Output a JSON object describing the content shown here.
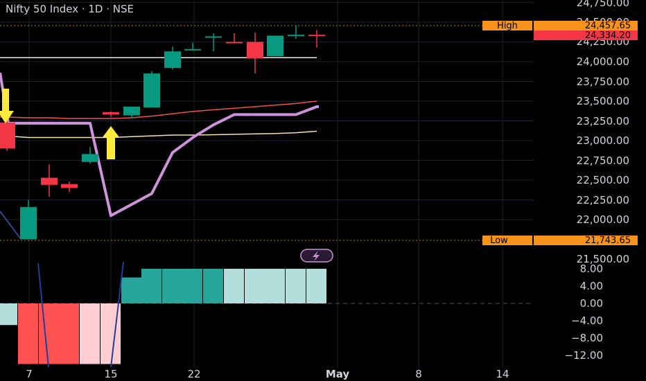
{
  "title": "Nifty 50 Index · 1D · NSE",
  "colors": {
    "background": "#000000",
    "up": "#089981",
    "down": "#f23645",
    "grid": "#1e222d",
    "ma_pink": "#ef5350",
    "ma_white": "#f5e9e9",
    "ma_yellow": "#f7e3b5",
    "purple": "#ce93d8",
    "tag": "#f7931a",
    "price_tag": "#f23645"
  },
  "price_axis": {
    "ticks": [
      "24,750.00",
      "24,500.00",
      "24,250.00",
      "24,000.00",
      "23,750.00",
      "23,500.00",
      "23,250.00",
      "23,000.00",
      "22,750.00",
      "22,500.00",
      "22,250.00",
      "22,000.00",
      "21,500.00"
    ]
  },
  "osc_axis": {
    "ticks": [
      "8.00",
      "4.00",
      "0.00",
      "−4.00",
      "−8.00",
      "−12.00"
    ]
  },
  "x_axis": {
    "ticks": [
      "7",
      "15",
      "22",
      "May",
      "8",
      "14"
    ]
  },
  "labels": {
    "high_label": "High",
    "high_value": "24,457.65",
    "last_value": "24,334.20",
    "low_label": "Low",
    "low_value": "21,743.65",
    "alert_icon": "lightning-icon"
  },
  "chart_data": [
    {
      "type": "candlestick",
      "title": "Nifty 50 Index · 1D · NSE",
      "ylim": [
        21500,
        24750
      ],
      "candles": [
        {
          "date": "Apr 4",
          "open": 23230,
          "high": 23350,
          "low": 22870,
          "close": 22900
        },
        {
          "date": "Apr 7",
          "open": 21750,
          "high": 22250,
          "low": 21750,
          "close": 22160
        },
        {
          "date": "Apr 8",
          "open": 22530,
          "high": 22700,
          "low": 22290,
          "close": 22440
        },
        {
          "date": "Apr 9",
          "open": 22450,
          "high": 22480,
          "low": 22350,
          "close": 22400
        },
        {
          "date": "Apr 11",
          "open": 22730,
          "high": 22920,
          "low": 22710,
          "close": 22830
        },
        {
          "date": "Apr 15",
          "open": 23360,
          "high": 23370,
          "low": 23300,
          "close": 23330
        },
        {
          "date": "Apr 16",
          "open": 23320,
          "high": 23430,
          "low": 23280,
          "close": 23430
        },
        {
          "date": "Apr 17",
          "open": 23420,
          "high": 23880,
          "low": 23420,
          "close": 23850
        },
        {
          "date": "Apr 21",
          "open": 23920,
          "high": 24190,
          "low": 23900,
          "close": 24130
        },
        {
          "date": "Apr 22",
          "open": 24160,
          "high": 24240,
          "low": 24140,
          "close": 24160
        },
        {
          "date": "Apr 23",
          "open": 24310,
          "high": 24360,
          "low": 24130,
          "close": 24320
        },
        {
          "date": "Apr 24",
          "open": 24250,
          "high": 24360,
          "low": 24230,
          "close": 24240
        },
        {
          "date": "Apr 25",
          "open": 24250,
          "high": 24370,
          "low": 23850,
          "close": 24040
        },
        {
          "date": "Apr 28",
          "open": 24070,
          "high": 24320,
          "low": 24070,
          "close": 24330
        },
        {
          "date": "Apr 29",
          "open": 24340,
          "high": 24460,
          "low": 24290,
          "close": 24340
        },
        {
          "date": "Apr 30",
          "open": 24340,
          "high": 24400,
          "low": 24180,
          "close": 24334.2
        }
      ],
      "moving_averages": [
        {
          "values": [
            23300,
            23290,
            23290,
            23280,
            23280,
            23280,
            23290,
            23310,
            23340,
            23370,
            23390,
            23410,
            23430,
            23450,
            23470,
            23500
          ]
        },
        {
          "values": [
            23065,
            23040,
            23040,
            23040,
            23040,
            23040,
            23050,
            23060,
            23070,
            23070,
            23075,
            23080,
            23085,
            23090,
            23100,
            23120
          ]
        },
        {
          "values": [
            24050,
            24050,
            24050,
            24050,
            24050,
            24050,
            24050,
            24050,
            24050,
            24050,
            24050,
            24050,
            24050,
            24050,
            24050,
            24050
          ]
        }
      ],
      "trail_line": [
        23860,
        23220,
        23220,
        23220,
        23220,
        22050,
        22330,
        22850,
        23050,
        23200,
        23330,
        23330,
        23330,
        23330,
        23430,
        23430
      ],
      "high": 24457.65,
      "low": 21743.65,
      "last": 24334.2
    },
    {
      "type": "bar",
      "title": "",
      "ylim": [
        -14,
        8
      ],
      "values": [
        -5,
        -14,
        -14,
        -14,
        -14,
        -14,
        6,
        8,
        8,
        8,
        8,
        8,
        8,
        8,
        8,
        8
      ],
      "colors": [
        "#b2dfdb",
        "#ff5252",
        "#ff5252",
        "#ff5252",
        "#ffcdd2",
        "#ffcdd2",
        "#26a69a",
        "#26a69a",
        "#26a69a",
        "#26a69a",
        "#26a69a",
        "#b2dfdb",
        "#b2dfdb",
        "#b2dfdb",
        "#b2dfdb",
        "#b2dfdb"
      ]
    }
  ]
}
